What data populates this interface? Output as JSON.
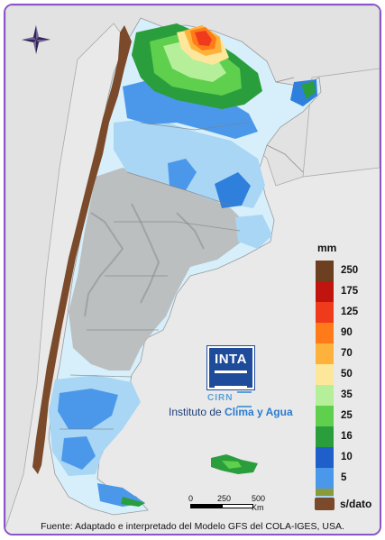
{
  "legend": {
    "title": "mm",
    "items": [
      {
        "label": "250",
        "color": "#6b3f1f"
      },
      {
        "label": "175",
        "color": "#c0150f"
      },
      {
        "label": "125",
        "color": "#ef3a1c"
      },
      {
        "label": "90",
        "color": "#ff7a18"
      },
      {
        "label": "70",
        "color": "#ffb23b"
      },
      {
        "label": "50",
        "color": "#fde79a"
      },
      {
        "label": "35",
        "color": "#b5ef9a"
      },
      {
        "label": "25",
        "color": "#5fcf4e"
      },
      {
        "label": "16",
        "color": "#2a9e3c"
      },
      {
        "label": "10",
        "color": "#1f5fc9"
      },
      {
        "label": "5",
        "color": "#4b98ea"
      }
    ],
    "base_colors": [
      "#8a9c3a",
      "#a9d6f5",
      "#d6f0fb"
    ],
    "nodata_label": "s/dato",
    "nodata_color": "#7a4a2a"
  },
  "logo": {
    "inta_text": "INTA",
    "cirn_text": "CIRN",
    "institute_prefix": "Instituto de ",
    "institute_highlight": "Clima y Agua"
  },
  "scale": {
    "labels": [
      "0",
      "250",
      "500 Km"
    ]
  },
  "source": "Fuente: Adaptado e interpretado del Modelo GFS del COLA-IGES, USA.",
  "map": {
    "colors": {
      "land": "#e6e6e6",
      "sea": "#e9e9e9",
      "border": "#9a9a9a",
      "relief": "#b9b9b9",
      "nodata": "#7a4a2a",
      "frame": "#8a55c6"
    }
  }
}
